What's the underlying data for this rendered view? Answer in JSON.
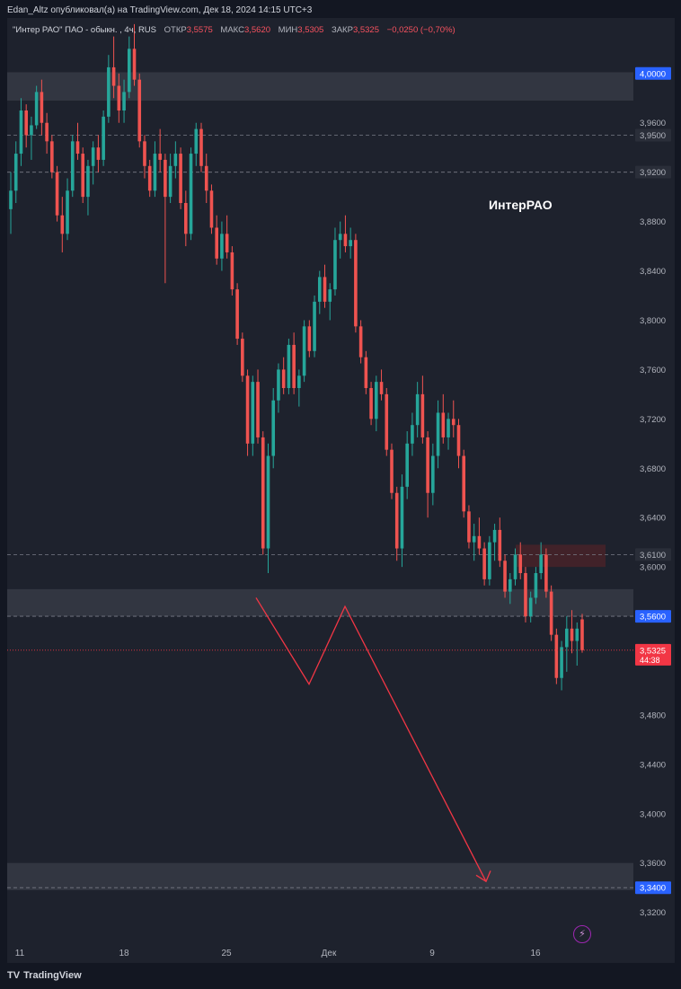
{
  "header": {
    "publisher_line": "Edan_Altz опубликовал(а) на TradingView.com, Дек 18, 2024 14:15 UTC+3"
  },
  "legend": {
    "symbol": "\"Интер РАО\" ПАО - обыкн. , 4ч, RUS",
    "open_label": "ОТКР",
    "open_value": "3,5575",
    "high_label": "МАКС",
    "high_value": "3,5620",
    "low_label": "МИН",
    "low_value": "3,5305",
    "close_label": "ЗАКР",
    "close_value": "3,5325",
    "change": "−0,0250 (−0,70%)"
  },
  "annotation": "ИнтерРАО",
  "footer": {
    "logo_text": "TradingView"
  },
  "colors": {
    "background": "#1e222d",
    "up_candle": "#26a69a",
    "down_candle": "#ef5350",
    "zone": "#363a45",
    "resistance_zone": "#4a2328",
    "forecast_line": "#f23645",
    "current_price": "#f23645",
    "highlight_label": "#2962ff"
  },
  "chart_data": {
    "type": "candlestick",
    "symbol": "Интер РАО",
    "interval": "4ч",
    "y_axis": {
      "range": [
        3.295,
        4.045
      ],
      "ticks": [
        "4,0000",
        "3,9600",
        "3,9500",
        "3,9200",
        "3,8800",
        "3,8400",
        "3,8000",
        "3,7600",
        "3,7200",
        "3,6800",
        "3,6400",
        "3,6100",
        "3,6000",
        "3,5600",
        "3,4800",
        "3,4400",
        "3,4000",
        "3,3600",
        "3,3400",
        "3,3200"
      ],
      "tick_values": [
        4.0,
        3.96,
        3.95,
        3.92,
        3.88,
        3.84,
        3.8,
        3.76,
        3.72,
        3.68,
        3.64,
        3.61,
        3.6,
        3.56,
        3.48,
        3.44,
        3.4,
        3.36,
        3.34,
        3.32
      ],
      "highlight_labels": [
        {
          "value": 4.0,
          "text": "4,0000"
        },
        {
          "value": 3.56,
          "text": "3,5600"
        },
        {
          "value": 3.34,
          "text": "3,3400"
        }
      ],
      "muted_labels": [
        {
          "value": 3.95,
          "text": "3,9500"
        },
        {
          "value": 3.92,
          "text": "3,9200"
        },
        {
          "value": 3.61,
          "text": "3,6100"
        }
      ]
    },
    "x_axis": {
      "labels": [
        "11",
        "18",
        "25",
        "Дек",
        "9",
        "16"
      ]
    },
    "current_price": {
      "value": 3.5325,
      "text": "3,5325",
      "countdown": "44:38"
    },
    "horizontal_lines": [
      3.95,
      3.92,
      3.61,
      3.56,
      3.34
    ],
    "zones": [
      {
        "top": 4.001,
        "bottom": 3.978
      },
      {
        "top": 3.582,
        "bottom": 3.56
      },
      {
        "top": 3.36,
        "bottom": 3.338
      }
    ],
    "resistance_box": {
      "top": 3.618,
      "bottom": 3.6
    },
    "forecast_path": [
      3.575,
      3.505,
      3.568,
      3.345
    ],
    "candles": [
      [
        3.89,
        3.92,
        3.87,
        3.905
      ],
      [
        3.905,
        3.945,
        3.895,
        3.935
      ],
      [
        3.935,
        3.98,
        3.925,
        3.97
      ],
      [
        3.97,
        3.975,
        3.94,
        3.95
      ],
      [
        3.95,
        3.965,
        3.93,
        3.958
      ],
      [
        3.958,
        3.99,
        3.955,
        3.985
      ],
      [
        3.985,
        3.995,
        3.95,
        3.96
      ],
      [
        3.96,
        3.968,
        3.935,
        3.945
      ],
      [
        3.945,
        3.95,
        3.915,
        3.92
      ],
      [
        3.92,
        3.925,
        3.88,
        3.885
      ],
      [
        3.885,
        3.9,
        3.855,
        3.87
      ],
      [
        3.87,
        3.915,
        3.865,
        3.905
      ],
      [
        3.905,
        3.95,
        3.9,
        3.945
      ],
      [
        3.945,
        3.96,
        3.93,
        3.935
      ],
      [
        3.935,
        3.94,
        3.895,
        3.9
      ],
      [
        3.9,
        3.93,
        3.885,
        3.925
      ],
      [
        3.925,
        3.945,
        3.91,
        3.94
      ],
      [
        3.94,
        3.95,
        3.92,
        3.93
      ],
      [
        3.93,
        3.97,
        3.925,
        3.965
      ],
      [
        3.965,
        4.015,
        3.96,
        4.005
      ],
      [
        4.005,
        4.03,
        3.98,
        3.99
      ],
      [
        3.99,
        4.0,
        3.96,
        3.97
      ],
      [
        3.97,
        3.995,
        3.96,
        3.985
      ],
      [
        3.985,
        4.03,
        3.98,
        4.02
      ],
      [
        4.02,
        4.04,
        3.99,
        3.995
      ],
      [
        3.995,
        4.0,
        3.94,
        3.945
      ],
      [
        3.945,
        3.95,
        3.915,
        3.925
      ],
      [
        3.925,
        3.93,
        3.9,
        3.905
      ],
      [
        3.905,
        3.945,
        3.9,
        3.935
      ],
      [
        3.935,
        3.955,
        3.92,
        3.93
      ],
      [
        3.93,
        3.935,
        3.83,
        3.9
      ],
      [
        3.9,
        3.935,
        3.895,
        3.925
      ],
      [
        3.925,
        3.945,
        3.915,
        3.935
      ],
      [
        3.935,
        3.94,
        3.89,
        3.895
      ],
      [
        3.895,
        3.905,
        3.86,
        3.87
      ],
      [
        3.87,
        3.94,
        3.865,
        3.935
      ],
      [
        3.935,
        3.96,
        3.925,
        3.955
      ],
      [
        3.955,
        3.96,
        3.92,
        3.925
      ],
      [
        3.925,
        3.935,
        3.895,
        3.905
      ],
      [
        3.905,
        3.91,
        3.87,
        3.875
      ],
      [
        3.875,
        3.885,
        3.845,
        3.85
      ],
      [
        3.85,
        3.88,
        3.84,
        3.87
      ],
      [
        3.87,
        3.885,
        3.85,
        3.855
      ],
      [
        3.855,
        3.86,
        3.82,
        3.825
      ],
      [
        3.825,
        3.83,
        3.78,
        3.785
      ],
      [
        3.785,
        3.79,
        3.75,
        3.755
      ],
      [
        3.755,
        3.76,
        3.69,
        3.7
      ],
      [
        3.7,
        3.755,
        3.69,
        3.75
      ],
      [
        3.75,
        3.76,
        3.7,
        3.705
      ],
      [
        3.705,
        3.71,
        3.61,
        3.615
      ],
      [
        3.615,
        3.7,
        3.595,
        3.69
      ],
      [
        3.69,
        3.745,
        3.68,
        3.735
      ],
      [
        3.735,
        3.765,
        3.725,
        3.76
      ],
      [
        3.76,
        3.77,
        3.74,
        3.745
      ],
      [
        3.745,
        3.785,
        3.74,
        3.78
      ],
      [
        3.78,
        3.79,
        3.74,
        3.745
      ],
      [
        3.745,
        3.76,
        3.73,
        3.755
      ],
      [
        3.755,
        3.8,
        3.75,
        3.795
      ],
      [
        3.795,
        3.8,
        3.77,
        3.775
      ],
      [
        3.775,
        3.82,
        3.77,
        3.815
      ],
      [
        3.815,
        3.84,
        3.805,
        3.835
      ],
      [
        3.835,
        3.845,
        3.81,
        3.815
      ],
      [
        3.815,
        3.83,
        3.8,
        3.825
      ],
      [
        3.825,
        3.875,
        3.82,
        3.865
      ],
      [
        3.865,
        3.88,
        3.85,
        3.87
      ],
      [
        3.87,
        3.885,
        3.855,
        3.86
      ],
      [
        3.86,
        3.875,
        3.85,
        3.865
      ],
      [
        3.865,
        3.87,
        3.79,
        3.795
      ],
      [
        3.795,
        3.8,
        3.765,
        3.77
      ],
      [
        3.77,
        3.775,
        3.74,
        3.745
      ],
      [
        3.745,
        3.75,
        3.715,
        3.72
      ],
      [
        3.72,
        3.755,
        3.71,
        3.75
      ],
      [
        3.75,
        3.76,
        3.735,
        3.74
      ],
      [
        3.74,
        3.745,
        3.69,
        3.695
      ],
      [
        3.695,
        3.7,
        3.655,
        3.66
      ],
      [
        3.66,
        3.665,
        3.605,
        3.615
      ],
      [
        3.615,
        3.675,
        3.6,
        3.665
      ],
      [
        3.665,
        3.71,
        3.655,
        3.7
      ],
      [
        3.7,
        3.725,
        3.69,
        3.715
      ],
      [
        3.715,
        3.75,
        3.705,
        3.74
      ],
      [
        3.74,
        3.755,
        3.7,
        3.705
      ],
      [
        3.705,
        3.71,
        3.64,
        3.66
      ],
      [
        3.66,
        3.7,
        3.65,
        3.69
      ],
      [
        3.69,
        3.735,
        3.68,
        3.725
      ],
      [
        3.725,
        3.74,
        3.7,
        3.705
      ],
      [
        3.705,
        3.725,
        3.695,
        3.72
      ],
      [
        3.72,
        3.735,
        3.705,
        3.715
      ],
      [
        3.715,
        3.72,
        3.68,
        3.69
      ],
      [
        3.69,
        3.695,
        3.64,
        3.645
      ],
      [
        3.645,
        3.65,
        3.615,
        3.62
      ],
      [
        3.62,
        3.635,
        3.605,
        3.625
      ],
      [
        3.625,
        3.64,
        3.61,
        3.615
      ],
      [
        3.615,
        3.62,
        3.585,
        3.59
      ],
      [
        3.59,
        3.625,
        3.585,
        3.62
      ],
      [
        3.62,
        3.635,
        3.605,
        3.63
      ],
      [
        3.63,
        3.64,
        3.6,
        3.605
      ],
      [
        3.605,
        3.61,
        3.575,
        3.58
      ],
      [
        3.58,
        3.595,
        3.57,
        3.59
      ],
      [
        3.59,
        3.615,
        3.585,
        3.61
      ],
      [
        3.61,
        3.62,
        3.59,
        3.595
      ],
      [
        3.595,
        3.6,
        3.555,
        3.56
      ],
      [
        3.56,
        3.58,
        3.555,
        3.575
      ],
      [
        3.575,
        3.6,
        3.57,
        3.595
      ],
      [
        3.595,
        3.62,
        3.59,
        3.61
      ],
      [
        3.61,
        3.615,
        3.575,
        3.58
      ],
      [
        3.58,
        3.585,
        3.54,
        3.545
      ],
      [
        3.545,
        3.55,
        3.505,
        3.51
      ],
      [
        3.51,
        3.54,
        3.5,
        3.535
      ],
      [
        3.535,
        3.56,
        3.515,
        3.55
      ],
      [
        3.55,
        3.565,
        3.53,
        3.54
      ],
      [
        3.54,
        3.555,
        3.52,
        3.55
      ],
      [
        3.5575,
        3.562,
        3.5305,
        3.5325
      ]
    ]
  }
}
